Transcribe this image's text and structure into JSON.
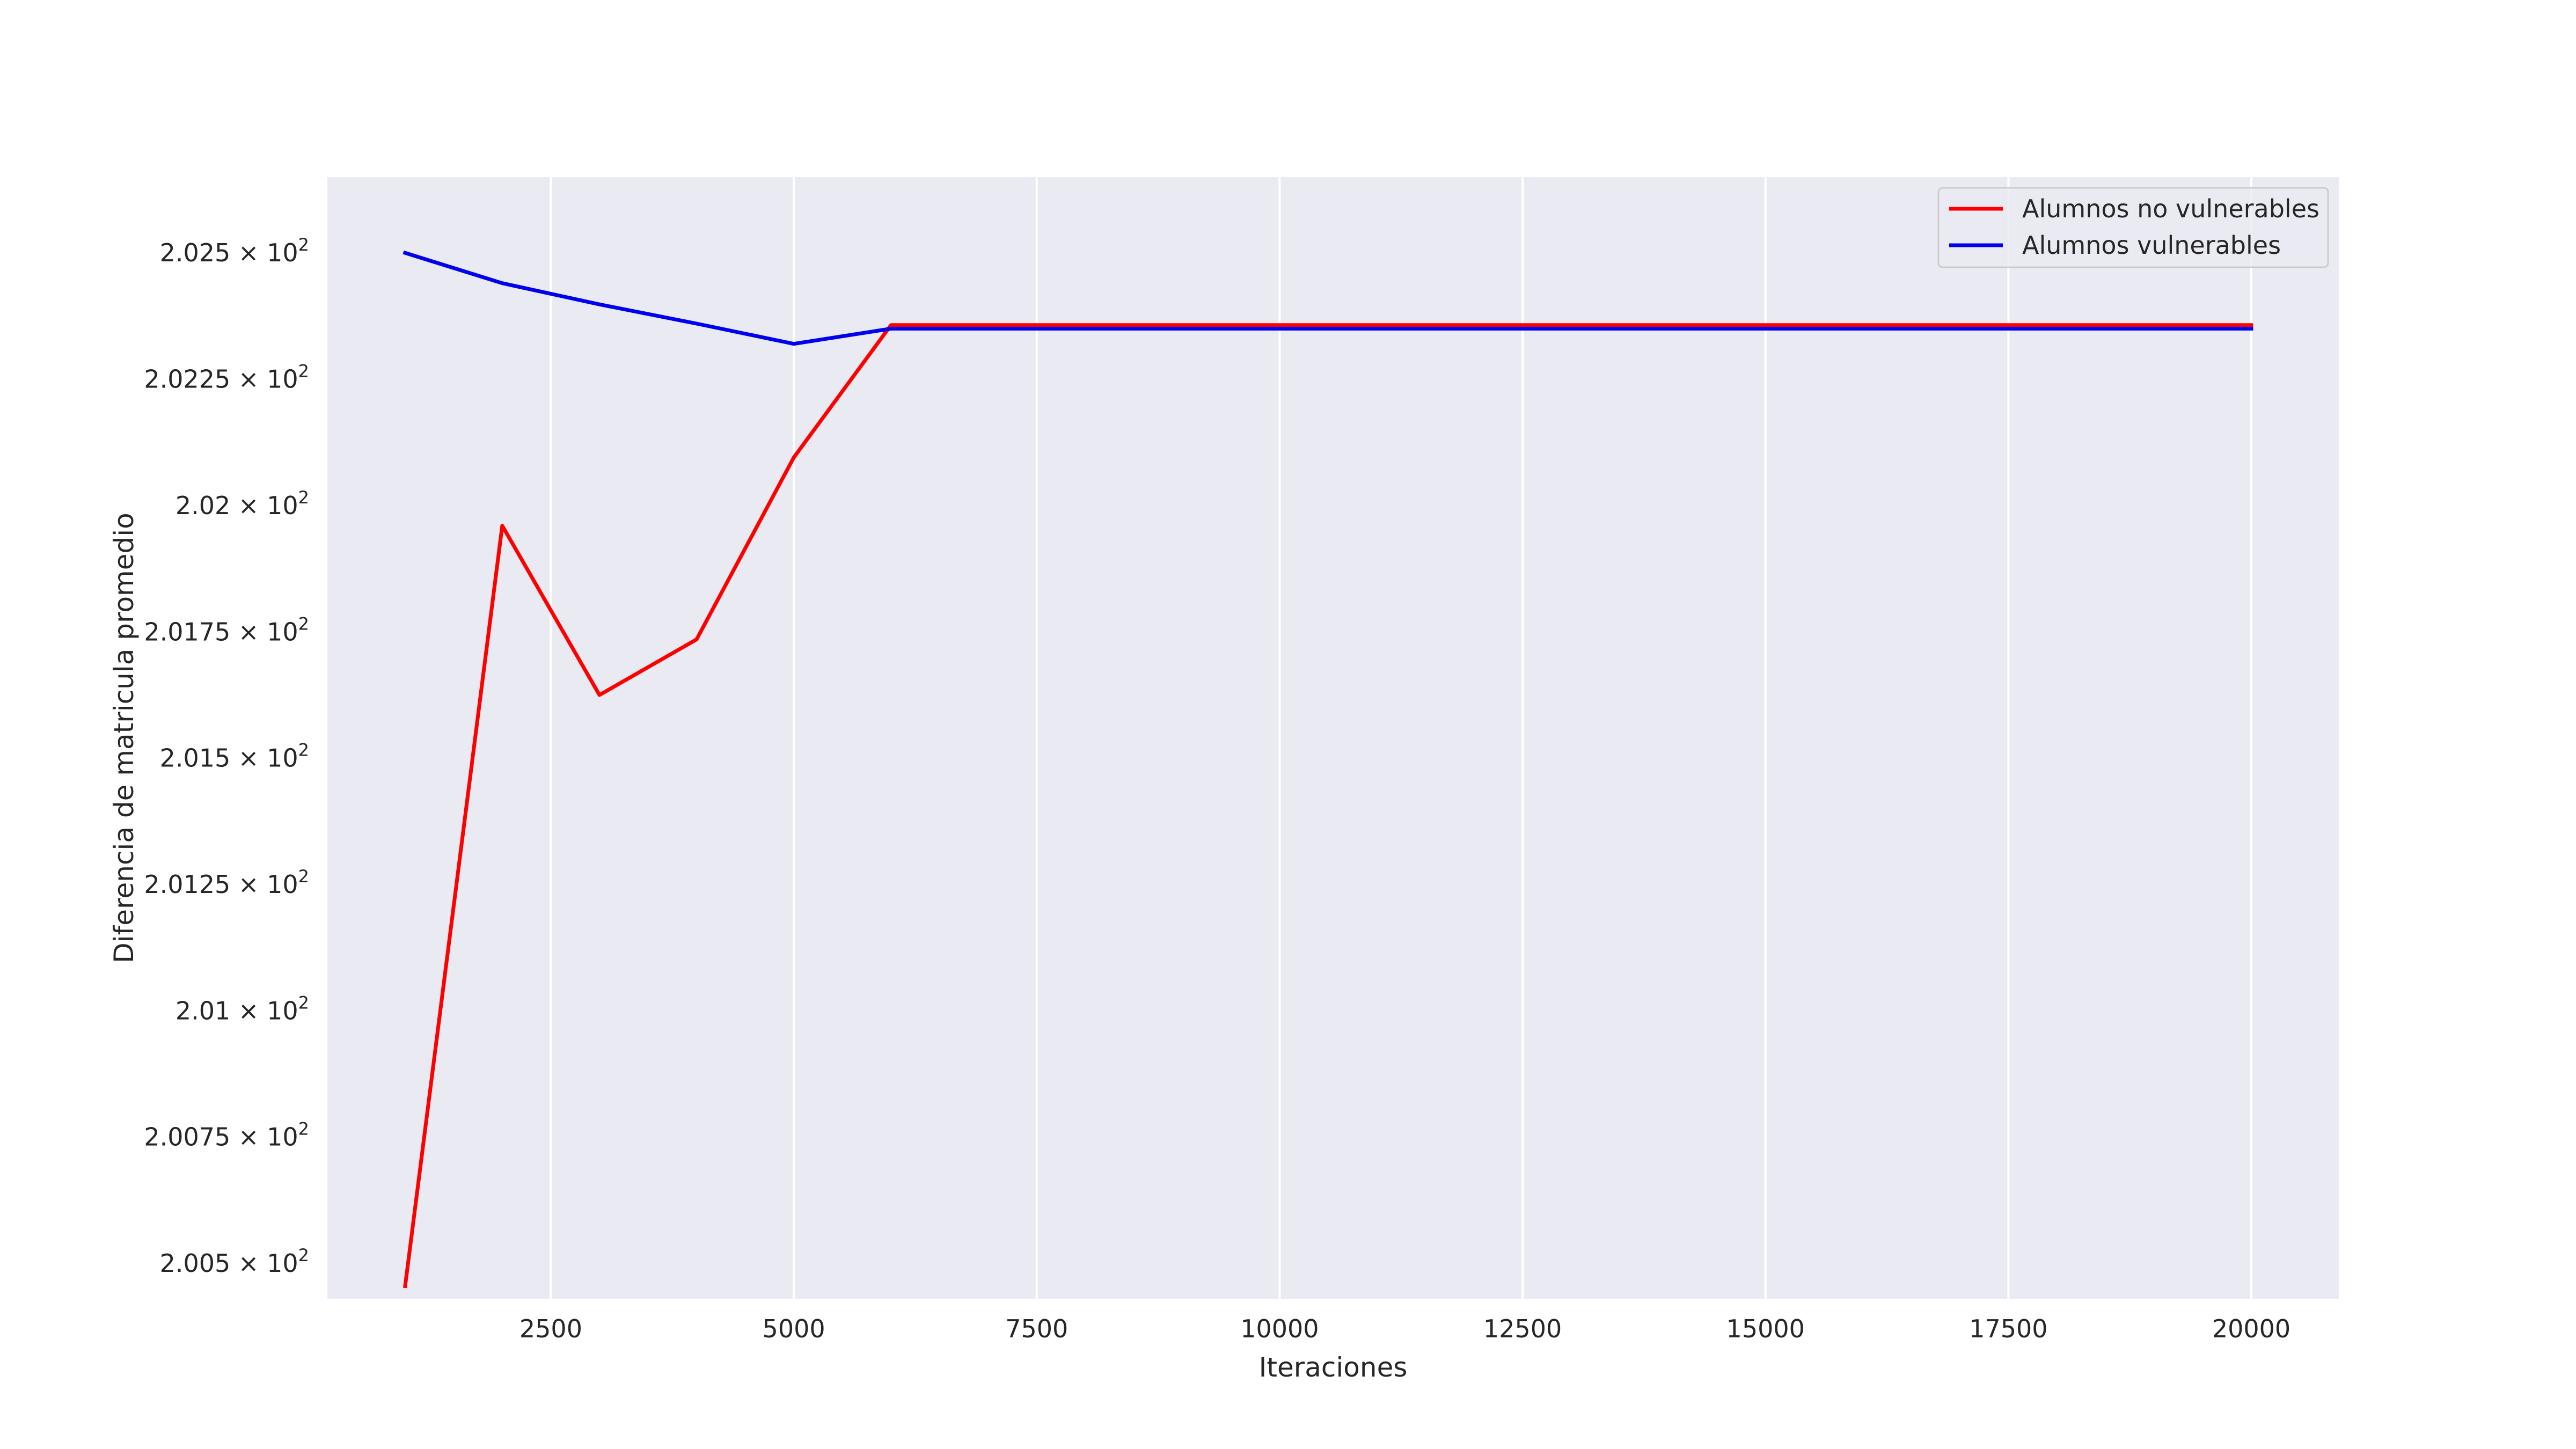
{
  "chart_data": {
    "type": "line",
    "title": "",
    "xlabel": "Iteraciones",
    "ylabel": "Diferencia de matricula promedio",
    "xlim": [
      200,
      20900
    ],
    "ylim": [
      200.43,
      202.65
    ],
    "x_ticks": [
      2500,
      5000,
      7500,
      10000,
      12500,
      15000,
      17500,
      20000
    ],
    "x_tick_labels": [
      "2500",
      "5000",
      "7500",
      "10000",
      "12500",
      "15000",
      "17500",
      "20000"
    ],
    "y_ticks": [
      200.5,
      200.75,
      201.0,
      201.25,
      201.5,
      201.75,
      202.0,
      202.25,
      202.5
    ],
    "y_tick_labels": [
      {
        "mant": "2.005",
        "exp": "2"
      },
      {
        "mant": "2.0075",
        "exp": "2"
      },
      {
        "mant": "2.01",
        "exp": "2"
      },
      {
        "mant": "2.0125",
        "exp": "2"
      },
      {
        "mant": "2.015",
        "exp": "2"
      },
      {
        "mant": "2.0175",
        "exp": "2"
      },
      {
        "mant": "2.02",
        "exp": "2"
      },
      {
        "mant": "2.0225",
        "exp": "2"
      },
      {
        "mant": "2.025",
        "exp": "2"
      }
    ],
    "grid": true,
    "legend_position": "top-right",
    "x": [
      1000,
      2000,
      3000,
      4000,
      5000,
      6000,
      7000,
      8000,
      9000,
      10000,
      11000,
      12000,
      13000,
      14000,
      15000,
      16000,
      17000,
      18000,
      19000,
      20000
    ],
    "series": [
      {
        "name": "Alumnos no vulnerables",
        "color": "#ff0000",
        "values": [
          200.455,
          201.96,
          201.625,
          201.735,
          202.095,
          202.357,
          202.357,
          202.357,
          202.357,
          202.357,
          202.357,
          202.357,
          202.357,
          202.357,
          202.357,
          202.357,
          202.357,
          202.357,
          202.357,
          202.357
        ]
      },
      {
        "name": "Alumnos vulnerables",
        "color": "#0000ee",
        "values": [
          202.5,
          202.44,
          202.398,
          202.36,
          202.32,
          202.35,
          202.35,
          202.35,
          202.35,
          202.35,
          202.35,
          202.35,
          202.35,
          202.35,
          202.35,
          202.35,
          202.35,
          202.35,
          202.35,
          202.35
        ]
      }
    ]
  }
}
